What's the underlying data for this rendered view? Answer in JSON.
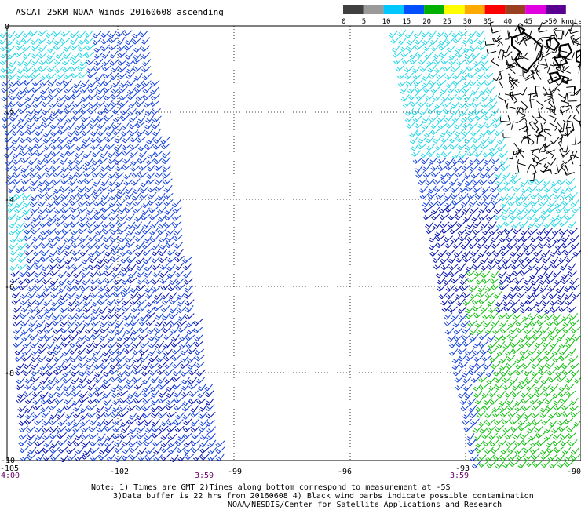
{
  "title": "ASCAT 25KM NOAA Winds 20160608 ascending",
  "color_scale": {
    "ticks": [
      "0",
      "5",
      "10",
      "15",
      "20",
      "25",
      "30",
      "35",
      "40",
      "45",
      ">50 knots"
    ],
    "colors": [
      "#404040",
      "#9a9a9a",
      "#00c8ff",
      "#0050ff",
      "#00b000",
      "#ffff00",
      "#ffaa00",
      "#ff0000",
      "#9a4020",
      "#e000e0",
      "#5a0090"
    ]
  },
  "axes": {
    "lat_labels": [
      "0",
      "-2",
      "-4",
      "-6",
      "-8",
      "-10"
    ],
    "lon_labels": [
      "-105",
      "-102",
      "-99",
      "-96",
      "-93",
      "-90"
    ]
  },
  "time_labels": [
    "4:00",
    "3:59",
    "3:59"
  ],
  "notes": {
    "line1": "Note: 1) Times are GMT 2)Times along bottom correspond to measurement at -5S",
    "line2": "3)Data buffer is 22 hrs from 20160608 4) Black wind barbs indicate possible contamination",
    "line3": "NOAA/NESDIS/Center for Satellite Applications and Research"
  },
  "legend_colors": {
    "cyan": "#20d8e8",
    "blue": "#1040e0",
    "navy": "#0010b0",
    "green": "#10c010",
    "black": "#000000"
  }
}
